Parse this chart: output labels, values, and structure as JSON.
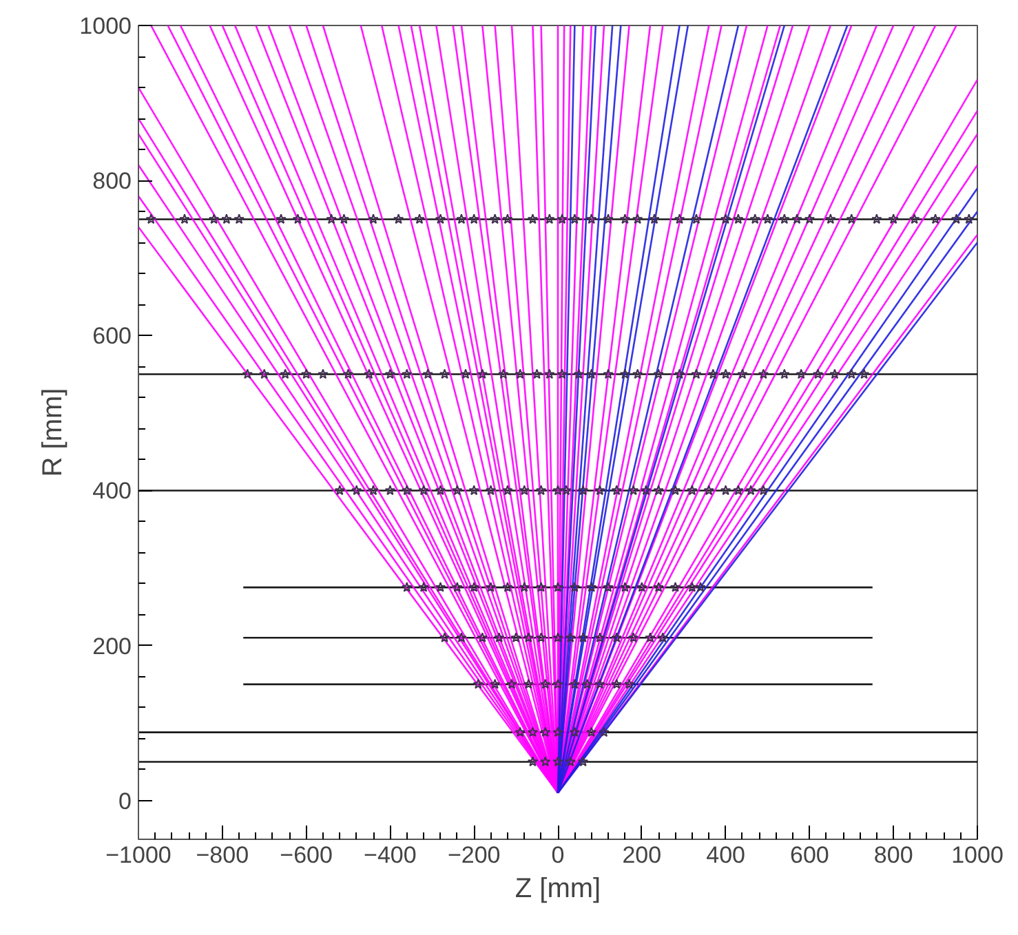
{
  "chart_data": {
    "type": "line",
    "xlabel": "Z [mm]",
    "ylabel": "R [mm]",
    "xlim": [
      -1000,
      1000
    ],
    "ylim": [
      -50,
      1000
    ],
    "xticks": [
      -1000,
      -800,
      -600,
      -400,
      -200,
      0,
      200,
      400,
      600,
      800,
      1000
    ],
    "yticks": [
      0,
      200,
      400,
      600,
      800,
      1000
    ],
    "grid": false,
    "line_style": "solid",
    "marker": "none",
    "series": [
      {
        "color": "#000000",
        "x": [
          -1000,
          1000
        ],
        "values": [
          750,
          750
        ]
      },
      {
        "color": "#000000",
        "x": [
          -1000,
          1000
        ],
        "values": [
          550,
          550
        ]
      },
      {
        "color": "#000000",
        "x": [
          -1000,
          1000
        ],
        "values": [
          400,
          400
        ]
      },
      {
        "color": "#000000",
        "x": [
          -750,
          750
        ],
        "values": [
          275,
          275
        ]
      },
      {
        "color": "#000000",
        "x": [
          -750,
          750
        ],
        "values": [
          210,
          210
        ]
      },
      {
        "color": "#000000",
        "x": [
          -750,
          750
        ],
        "values": [
          150,
          150
        ]
      },
      {
        "color": "#000000",
        "x": [
          -1000,
          1000
        ],
        "values": [
          88,
          88
        ]
      },
      {
        "color": "#000000",
        "x": [
          -1000,
          1000
        ],
        "values": [
          50,
          50
        ]
      },
      {
        "color": "#ff00ff",
        "x": [
          0,
          -1000
        ],
        "values": [
          10,
          920
        ]
      },
      {
        "color": "#ff00ff",
        "x": [
          0,
          -1000
        ],
        "values": [
          10,
          880
        ]
      },
      {
        "color": "#ff00ff",
        "x": [
          0,
          -1000
        ],
        "values": [
          10,
          860
        ]
      },
      {
        "color": "#ff00ff",
        "x": [
          0,
          -1000
        ],
        "values": [
          10,
          820
        ]
      },
      {
        "color": "#ff00ff",
        "x": [
          0,
          -1000
        ],
        "values": [
          10,
          780
        ]
      },
      {
        "color": "#ff00ff",
        "x": [
          0,
          -1000
        ],
        "values": [
          10,
          740
        ]
      },
      {
        "color": "#ff00ff",
        "x": [
          0,
          -970
        ],
        "values": [
          10,
          1000
        ]
      },
      {
        "color": "#ff00ff",
        "x": [
          0,
          -930
        ],
        "values": [
          10,
          1000
        ]
      },
      {
        "color": "#ff00ff",
        "x": [
          0,
          -900
        ],
        "values": [
          10,
          1000
        ]
      },
      {
        "color": "#ff00ff",
        "x": [
          0,
          -830
        ],
        "values": [
          10,
          1000
        ]
      },
      {
        "color": "#ff00ff",
        "x": [
          0,
          -800
        ],
        "values": [
          10,
          1000
        ]
      },
      {
        "color": "#ff00ff",
        "x": [
          0,
          -770
        ],
        "values": [
          10,
          1000
        ]
      },
      {
        "color": "#ff00ff",
        "x": [
          0,
          -720
        ],
        "values": [
          10,
          1000
        ]
      },
      {
        "color": "#ff00ff",
        "x": [
          0,
          -690
        ],
        "values": [
          10,
          1000
        ]
      },
      {
        "color": "#ff00ff",
        "x": [
          0,
          -640
        ],
        "values": [
          10,
          1000
        ]
      },
      {
        "color": "#ff00ff",
        "x": [
          0,
          -600
        ],
        "values": [
          10,
          1000
        ]
      },
      {
        "color": "#ff00ff",
        "x": [
          0,
          -560
        ],
        "values": [
          10,
          1000
        ]
      },
      {
        "color": "#ff00ff",
        "x": [
          0,
          -470
        ],
        "values": [
          10,
          1000
        ]
      },
      {
        "color": "#ff00ff",
        "x": [
          0,
          -420
        ],
        "values": [
          10,
          1000
        ]
      },
      {
        "color": "#ff00ff",
        "x": [
          0,
          -380
        ],
        "values": [
          10,
          1000
        ]
      },
      {
        "color": "#ff00ff",
        "x": [
          0,
          -350
        ],
        "values": [
          10,
          1000
        ]
      },
      {
        "color": "#ff00ff",
        "x": [
          0,
          -330
        ],
        "values": [
          10,
          1000
        ]
      },
      {
        "color": "#ff00ff",
        "x": [
          0,
          -290
        ],
        "values": [
          10,
          1000
        ]
      },
      {
        "color": "#ff00ff",
        "x": [
          0,
          -250
        ],
        "values": [
          10,
          1000
        ]
      },
      {
        "color": "#ff00ff",
        "x": [
          0,
          -230
        ],
        "values": [
          10,
          1000
        ]
      },
      {
        "color": "#ff00ff",
        "x": [
          0,
          -180
        ],
        "values": [
          10,
          1000
        ]
      },
      {
        "color": "#ff00ff",
        "x": [
          0,
          -150
        ],
        "values": [
          10,
          1000
        ]
      },
      {
        "color": "#ff00ff",
        "x": [
          0,
          -110
        ],
        "values": [
          10,
          1000
        ]
      },
      {
        "color": "#ff00ff",
        "x": [
          0,
          -60
        ],
        "values": [
          10,
          1000
        ]
      },
      {
        "color": "#ff00ff",
        "x": [
          0,
          -40
        ],
        "values": [
          10,
          1000
        ]
      },
      {
        "color": "#ff00ff",
        "x": [
          0,
          0
        ],
        "values": [
          10,
          1000
        ]
      },
      {
        "color": "#ff00ff",
        "x": [
          0,
          15
        ],
        "values": [
          10,
          1000
        ]
      },
      {
        "color": "#ff00ff",
        "x": [
          0,
          30
        ],
        "values": [
          10,
          1000
        ]
      },
      {
        "color": "#ff00ff",
        "x": [
          0,
          60
        ],
        "values": [
          10,
          1000
        ]
      },
      {
        "color": "#ff00ff",
        "x": [
          0,
          80
        ],
        "values": [
          10,
          1000
        ]
      },
      {
        "color": "#ff00ff",
        "x": [
          0,
          110
        ],
        "values": [
          10,
          1000
        ]
      },
      {
        "color": "#ff00ff",
        "x": [
          0,
          170
        ],
        "values": [
          10,
          1000
        ]
      },
      {
        "color": "#ff00ff",
        "x": [
          0,
          220
        ],
        "values": [
          10,
          1000
        ]
      },
      {
        "color": "#ff00ff",
        "x": [
          0,
          250
        ],
        "values": [
          10,
          1000
        ]
      },
      {
        "color": "#ff00ff",
        "x": [
          0,
          360
        ],
        "values": [
          10,
          1000
        ]
      },
      {
        "color": "#ff00ff",
        "x": [
          0,
          390
        ],
        "values": [
          10,
          1000
        ]
      },
      {
        "color": "#ff00ff",
        "x": [
          0,
          450
        ],
        "values": [
          10,
          1000
        ]
      },
      {
        "color": "#ff00ff",
        "x": [
          0,
          500
        ],
        "values": [
          10,
          1000
        ]
      },
      {
        "color": "#ff00ff",
        "x": [
          0,
          530
        ],
        "values": [
          10,
          1000
        ]
      },
      {
        "color": "#ff00ff",
        "x": [
          0,
          560
        ],
        "values": [
          10,
          1000
        ]
      },
      {
        "color": "#ff00ff",
        "x": [
          0,
          600
        ],
        "values": [
          10,
          1000
        ]
      },
      {
        "color": "#ff00ff",
        "x": [
          0,
          650
        ],
        "values": [
          10,
          1000
        ]
      },
      {
        "color": "#ff00ff",
        "x": [
          0,
          700
        ],
        "values": [
          10,
          1000
        ]
      },
      {
        "color": "#ff00ff",
        "x": [
          0,
          760
        ],
        "values": [
          10,
          1000
        ]
      },
      {
        "color": "#ff00ff",
        "x": [
          0,
          800
        ],
        "values": [
          10,
          1000
        ]
      },
      {
        "color": "#ff00ff",
        "x": [
          0,
          850
        ],
        "values": [
          10,
          1000
        ]
      },
      {
        "color": "#ff00ff",
        "x": [
          0,
          900
        ],
        "values": [
          10,
          1000
        ]
      },
      {
        "color": "#ff00ff",
        "x": [
          0,
          950
        ],
        "values": [
          10,
          1000
        ]
      },
      {
        "color": "#ff00ff",
        "x": [
          0,
          1000
        ],
        "values": [
          10,
          930
        ]
      },
      {
        "color": "#ff00ff",
        "x": [
          0,
          1000
        ],
        "values": [
          10,
          890
        ]
      },
      {
        "color": "#ff00ff",
        "x": [
          0,
          1000
        ],
        "values": [
          10,
          860
        ]
      },
      {
        "color": "#ff00ff",
        "x": [
          0,
          1000
        ],
        "values": [
          10,
          820
        ]
      },
      {
        "color": "#ff00ff",
        "x": [
          0,
          1000
        ],
        "values": [
          10,
          730
        ]
      },
      {
        "color": "#2020e0",
        "x": [
          0,
          40
        ],
        "values": [
          10,
          1000
        ]
      },
      {
        "color": "#2020e0",
        "x": [
          0,
          90
        ],
        "values": [
          10,
          1000
        ]
      },
      {
        "color": "#2020e0",
        "x": [
          0,
          130
        ],
        "values": [
          10,
          1000
        ]
      },
      {
        "color": "#2020e0",
        "x": [
          0,
          150
        ],
        "values": [
          10,
          1000
        ]
      },
      {
        "color": "#2020e0",
        "x": [
          0,
          290
        ],
        "values": [
          10,
          1000
        ]
      },
      {
        "color": "#2020e0",
        "x": [
          0,
          310
        ],
        "values": [
          10,
          1000
        ]
      },
      {
        "color": "#2020e0",
        "x": [
          0,
          430
        ],
        "values": [
          10,
          1000
        ]
      },
      {
        "color": "#2020e0",
        "x": [
          0,
          540
        ],
        "values": [
          10,
          1000
        ]
      },
      {
        "color": "#2020e0",
        "x": [
          0,
          690
        ],
        "values": [
          10,
          1000
        ]
      },
      {
        "color": "#2020e0",
        "x": [
          0,
          1000
        ],
        "values": [
          10,
          790
        ]
      },
      {
        "color": "#2020e0",
        "x": [
          0,
          1000
        ],
        "values": [
          10,
          760
        ]
      },
      {
        "color": "#2020e0",
        "x": [
          0,
          1000
        ],
        "values": [
          10,
          720
        ]
      },
      {
        "type": "scatter",
        "marker": "star",
        "color": "#403050",
        "x": [
          -970,
          -890,
          -820,
          -790,
          -760,
          -660,
          -620,
          -540,
          -510,
          -440,
          -380,
          -330,
          -280,
          -230,
          -200,
          -150,
          -120,
          -60,
          -20,
          10,
          40,
          80,
          120,
          160,
          190,
          230,
          290,
          330,
          400,
          430,
          470,
          500,
          540,
          570,
          600,
          650,
          700,
          760,
          800,
          850,
          900,
          950,
          980,
          -740,
          -700,
          -650,
          -600,
          -560,
          -500,
          -450,
          -400,
          -360,
          -310,
          -270,
          -220,
          -180,
          -130,
          -90,
          -50,
          -20,
          10,
          50,
          80,
          120,
          160,
          190,
          240,
          290,
          330,
          370,
          400,
          440,
          490,
          540,
          580,
          620,
          660,
          700,
          730,
          -520,
          -480,
          -440,
          -400,
          -360,
          -320,
          -280,
          -240,
          -200,
          -160,
          -120,
          -80,
          -40,
          0,
          20,
          60,
          100,
          140,
          180,
          210,
          240,
          280,
          320,
          360,
          400,
          430,
          460,
          490,
          -360,
          -320,
          -280,
          -240,
          -200,
          -160,
          -120,
          -80,
          -40,
          0,
          40,
          80,
          120,
          160,
          200,
          240,
          280,
          320,
          340,
          -270,
          -230,
          -180,
          -140,
          -100,
          -70,
          -40,
          0,
          30,
          60,
          100,
          140,
          180,
          220,
          250,
          -190,
          -150,
          -110,
          -70,
          -30,
          0,
          40,
          70,
          100,
          140,
          170,
          -90,
          -60,
          -30,
          0,
          40,
          80,
          110,
          -60,
          -30,
          0,
          30,
          60
        ],
        "values": [
          750,
          750,
          750,
          750,
          750,
          750,
          750,
          750,
          750,
          750,
          750,
          750,
          750,
          750,
          750,
          750,
          750,
          750,
          750,
          750,
          750,
          750,
          750,
          750,
          750,
          750,
          750,
          750,
          750,
          750,
          750,
          750,
          750,
          750,
          750,
          750,
          750,
          750,
          750,
          750,
          750,
          750,
          750,
          550,
          550,
          550,
          550,
          550,
          550,
          550,
          550,
          550,
          550,
          550,
          550,
          550,
          550,
          550,
          550,
          550,
          550,
          550,
          550,
          550,
          550,
          550,
          550,
          550,
          550,
          550,
          550,
          550,
          550,
          550,
          550,
          550,
          550,
          550,
          550,
          400,
          400,
          400,
          400,
          400,
          400,
          400,
          400,
          400,
          400,
          400,
          400,
          400,
          400,
          400,
          400,
          400,
          400,
          400,
          400,
          400,
          400,
          400,
          400,
          400,
          400,
          400,
          400,
          275,
          275,
          275,
          275,
          275,
          275,
          275,
          275,
          275,
          275,
          275,
          275,
          275,
          275,
          275,
          275,
          275,
          275,
          275,
          210,
          210,
          210,
          210,
          210,
          210,
          210,
          210,
          210,
          210,
          210,
          210,
          210,
          210,
          210,
          150,
          150,
          150,
          150,
          150,
          150,
          150,
          150,
          150,
          150,
          150,
          88,
          88,
          88,
          88,
          88,
          88,
          88,
          50,
          50,
          50,
          50,
          50
        ]
      }
    ]
  }
}
